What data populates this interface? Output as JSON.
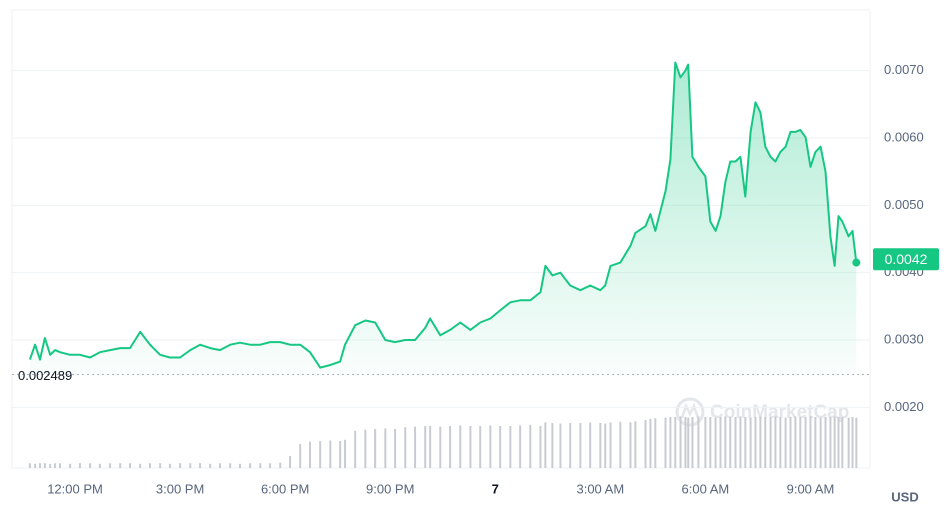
{
  "chart_data": {
    "type": "line",
    "x": [
      -1.29,
      -1.14,
      -1.0,
      -0.86,
      -0.71,
      -0.57,
      -0.43,
      -0.14,
      0.14,
      0.43,
      0.71,
      1.0,
      1.29,
      1.57,
      1.86,
      2.14,
      2.43,
      2.71,
      3.0,
      3.29,
      3.57,
      3.86,
      4.14,
      4.43,
      4.71,
      5.0,
      5.29,
      5.57,
      5.86,
      6.14,
      6.43,
      6.71,
      7.0,
      7.29,
      7.57,
      7.71,
      8.0,
      8.29,
      8.57,
      8.86,
      9.14,
      9.43,
      9.71,
      10.0,
      10.14,
      10.43,
      10.71,
      11.0,
      11.29,
      11.57,
      11.86,
      12.14,
      12.43,
      12.71,
      13.0,
      13.29,
      13.43,
      13.63,
      13.86,
      14.14,
      14.43,
      14.71,
      15.0,
      15.14,
      15.29,
      15.57,
      15.86,
      16.0,
      16.29,
      16.43,
      16.57,
      16.86,
      17.0,
      17.14,
      17.29,
      17.43,
      17.51,
      17.63,
      17.8,
      18.0,
      18.14,
      18.29,
      18.43,
      18.57,
      18.71,
      18.86,
      19.0,
      19.14,
      19.29,
      19.43,
      19.57,
      19.71,
      19.86,
      20.0,
      20.14,
      20.29,
      20.43,
      20.57,
      20.71,
      20.86,
      21.0,
      21.14,
      21.29,
      21.43,
      21.57,
      21.69,
      21.8,
      21.91,
      22.09,
      22.2,
      22.31
    ],
    "series": [
      {
        "color": "#16c784",
        "values": [
          0.00271,
          0.00293,
          0.00271,
          0.00303,
          0.00278,
          0.00285,
          0.00282,
          0.00278,
          0.00278,
          0.00274,
          0.00282,
          0.00285,
          0.00288,
          0.00288,
          0.00312,
          0.00293,
          0.00278,
          0.00274,
          0.00274,
          0.00285,
          0.00293,
          0.00288,
          0.00285,
          0.00293,
          0.00296,
          0.00293,
          0.00293,
          0.00297,
          0.00297,
          0.00293,
          0.00293,
          0.00282,
          0.00259,
          0.00263,
          0.00268,
          0.00293,
          0.00322,
          0.00329,
          0.00326,
          0.003,
          0.00297,
          0.003,
          0.003,
          0.00318,
          0.00332,
          0.00307,
          0.00315,
          0.00326,
          0.00315,
          0.00326,
          0.00332,
          0.00344,
          0.00356,
          0.00359,
          0.00359,
          0.00371,
          0.0041,
          0.00396,
          0.004,
          0.00381,
          0.00374,
          0.00381,
          0.00374,
          0.00381,
          0.0041,
          0.00415,
          0.0044,
          0.00459,
          0.00469,
          0.00487,
          0.00462,
          0.00521,
          0.00568,
          0.00712,
          0.0069,
          0.007,
          0.00709,
          0.00572,
          0.00557,
          0.00543,
          0.00476,
          0.00462,
          0.00484,
          0.00535,
          0.00565,
          0.00565,
          0.00572,
          0.00513,
          0.00609,
          0.00653,
          0.00638,
          0.00587,
          0.00572,
          0.00565,
          0.00579,
          0.00587,
          0.00609,
          0.00609,
          0.00612,
          0.00601,
          0.00557,
          0.00579,
          0.00587,
          0.0055,
          0.00454,
          0.0041,
          0.00484,
          0.00476,
          0.00454,
          0.00462,
          0.00415
        ]
      }
    ],
    "volume": {
      "color": "#c8ccd2",
      "ylim": [
        0,
        100
      ],
      "values": [
        8,
        7,
        8,
        8,
        7,
        8,
        8,
        7,
        8,
        8,
        7,
        8,
        8,
        8,
        7,
        8,
        8,
        7,
        8,
        8,
        8,
        7,
        8,
        8,
        7,
        8,
        8,
        8,
        9,
        20,
        40,
        44,
        45,
        46,
        45,
        47,
        62,
        64,
        65,
        66,
        65,
        68,
        69,
        70,
        70,
        69,
        70,
        71,
        70,
        70,
        71,
        70,
        70,
        71,
        72,
        70,
        76,
        75,
        74,
        75,
        75,
        76,
        75,
        74,
        76,
        77,
        76,
        78,
        80,
        82,
        83,
        84,
        85,
        85,
        86,
        85,
        84,
        85,
        86,
        85,
        85,
        84,
        85,
        86,
        85,
        85,
        86,
        85,
        84,
        85,
        86,
        85,
        85,
        86,
        85,
        84,
        85,
        86,
        85,
        85,
        86,
        85,
        84,
        85,
        85,
        86,
        85,
        85,
        84,
        85,
        84
      ]
    },
    "xlim": [
      -1.8,
      22.7
    ],
    "xticks": [
      {
        "value": 0,
        "label": "12:00 PM"
      },
      {
        "value": 3,
        "label": "3:00 PM"
      },
      {
        "value": 6,
        "label": "6:00 PM"
      },
      {
        "value": 9,
        "label": "9:00 PM"
      },
      {
        "value": 12,
        "label": "7"
      },
      {
        "value": 15,
        "label": "3:00 AM"
      },
      {
        "value": 18,
        "label": "6:00 AM"
      },
      {
        "value": 21,
        "label": "9:00 AM"
      }
    ],
    "ylim": [
      0.0011,
      0.0079
    ],
    "yticks": [
      {
        "value": 0.002,
        "label": "0.0020"
      },
      {
        "value": 0.003,
        "label": "0.0030"
      },
      {
        "value": 0.004,
        "label": "0.0040"
      },
      {
        "value": 0.005,
        "label": "0.0050"
      },
      {
        "value": 0.006,
        "label": "0.0060"
      },
      {
        "value": 0.007,
        "label": "0.0070"
      }
    ],
    "grid": true,
    "baseline": 0.002489,
    "current_price": 0.0042,
    "currency": "USD",
    "watermark": "CoinMarketCap"
  }
}
